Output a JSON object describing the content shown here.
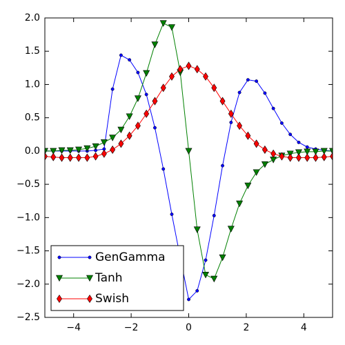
{
  "chart_data": {
    "type": "line",
    "x": [
      -5,
      -4.706,
      -4.412,
      -4.118,
      -3.824,
      -3.529,
      -3.235,
      -2.941,
      -2.647,
      -2.353,
      -2.059,
      -1.765,
      -1.471,
      -1.176,
      -0.882,
      -0.588,
      -0.294,
      0,
      0.294,
      0.588,
      0.882,
      1.176,
      1.471,
      1.765,
      2.059,
      2.353,
      2.647,
      2.941,
      3.235,
      3.529,
      3.824,
      4.118,
      4.412,
      4.706,
      5
    ],
    "series": [
      {
        "name": "GenGamma",
        "color": "#0000ff",
        "marker": "circle",
        "values": [
          0,
          0,
          0,
          0,
          0,
          0,
          0.01,
          0.03,
          0.93,
          1.44,
          1.37,
          1.18,
          0.85,
          0.35,
          -0.27,
          -0.95,
          -1.6,
          -2.23,
          -2.1,
          -1.64,
          -0.97,
          -0.22,
          0.43,
          0.88,
          1.07,
          1.05,
          0.87,
          0.64,
          0.42,
          0.25,
          0.13,
          0.06,
          0.03,
          0.01,
          0
        ]
      },
      {
        "name": "Tanh",
        "color": "#008000",
        "marker": "triangle_down",
        "values": [
          0,
          0,
          0.01,
          0.01,
          0.02,
          0.04,
          0.07,
          0.13,
          0.2,
          0.32,
          0.52,
          0.79,
          1.17,
          1.6,
          1.92,
          1.86,
          1.18,
          0,
          -1.18,
          -1.86,
          -1.92,
          -1.6,
          -1.17,
          -0.79,
          -0.52,
          -0.32,
          -0.2,
          -0.13,
          -0.07,
          -0.04,
          -0.02,
          -0.01,
          -0.01,
          0,
          0
        ]
      },
      {
        "name": "Swish",
        "color": "#ff0000",
        "marker": "diamond",
        "values": [
          -0.08,
          -0.09,
          -0.1,
          -0.1,
          -0.1,
          -0.1,
          -0.08,
          -0.04,
          0.02,
          0.11,
          0.23,
          0.38,
          0.56,
          0.75,
          0.95,
          1.12,
          1.23,
          1.28,
          1.23,
          1.12,
          0.95,
          0.75,
          0.56,
          0.38,
          0.23,
          0.11,
          0.02,
          -0.04,
          -0.08,
          -0.1,
          -0.1,
          -0.1,
          -0.1,
          -0.09,
          -0.08
        ]
      }
    ],
    "xlim": [
      -5,
      5
    ],
    "xticks": [
      {
        "value": -4,
        "label": "−4"
      },
      {
        "value": -2,
        "label": "−2"
      },
      0,
      2,
      4
    ],
    "ylim": [
      -2.5,
      2.0
    ],
    "yticks": [
      {
        "value": -2.5,
        "label": "−2.5"
      },
      {
        "value": -2.0,
        "label": "−2.0"
      },
      {
        "value": -1.5,
        "label": "−1.5"
      },
      {
        "value": -1.0,
        "label": "−1.0"
      },
      {
        "value": -0.5,
        "label": "−0.5"
      },
      {
        "value": 0,
        "label": "0.0"
      },
      {
        "value": 0.5,
        "label": "0.5"
      },
      {
        "value": 1.0,
        "label": "1.0"
      },
      {
        "value": 1.5,
        "label": "1.5"
      },
      {
        "value": 2.0,
        "label": "2.0"
      }
    ],
    "legend": "lower left"
  }
}
